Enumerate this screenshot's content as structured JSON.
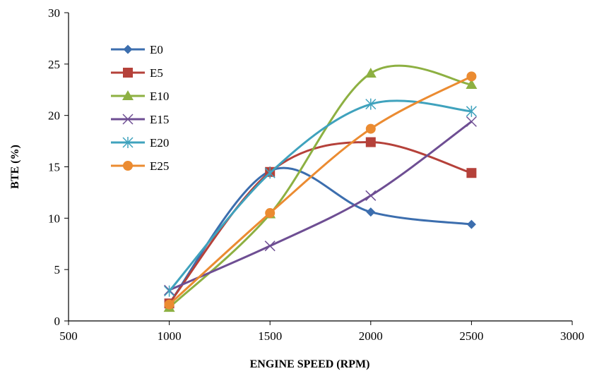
{
  "chart_data": {
    "type": "line",
    "title": "",
    "xlabel": "ENGINE SPEED (RPM)",
    "ylabel": "BTE (%)",
    "xlim": [
      500,
      3000
    ],
    "ylim": [
      0,
      30
    ],
    "xticks": [
      500,
      1000,
      1500,
      2000,
      2500,
      3000
    ],
    "yticks": [
      0,
      5,
      10,
      15,
      20,
      25,
      30
    ],
    "grid": false,
    "legend_position": "top-left",
    "series": [
      {
        "name": "E0",
        "color": "#3C6EAE",
        "marker": "diamond",
        "x": [
          1000,
          1500,
          2000,
          2500
        ],
        "y": [
          1.7,
          14.6,
          10.6,
          9.4
        ]
      },
      {
        "name": "E5",
        "color": "#B5413A",
        "marker": "square",
        "x": [
          1000,
          1500,
          2000,
          2500
        ],
        "y": [
          1.7,
          14.5,
          17.4,
          14.4
        ]
      },
      {
        "name": "E10",
        "color": "#8DB042",
        "marker": "triangle",
        "x": [
          1000,
          1500,
          2000,
          2500
        ],
        "y": [
          1.3,
          10.4,
          24.1,
          23.0
        ]
      },
      {
        "name": "E15",
        "color": "#6E4E93",
        "marker": "x",
        "x": [
          1000,
          1500,
          2000,
          2500
        ],
        "y": [
          3.0,
          7.3,
          12.2,
          19.4
        ]
      },
      {
        "name": "E20",
        "color": "#3FA2BD",
        "marker": "star",
        "x": [
          1000,
          1500,
          2000,
          2500
        ],
        "y": [
          2.9,
          14.4,
          21.1,
          20.4
        ]
      },
      {
        "name": "E25",
        "color": "#EB8B31",
        "marker": "circle",
        "x": [
          1000,
          1500,
          2000,
          2500
        ],
        "y": [
          1.6,
          10.5,
          18.7,
          23.8
        ]
      }
    ]
  }
}
